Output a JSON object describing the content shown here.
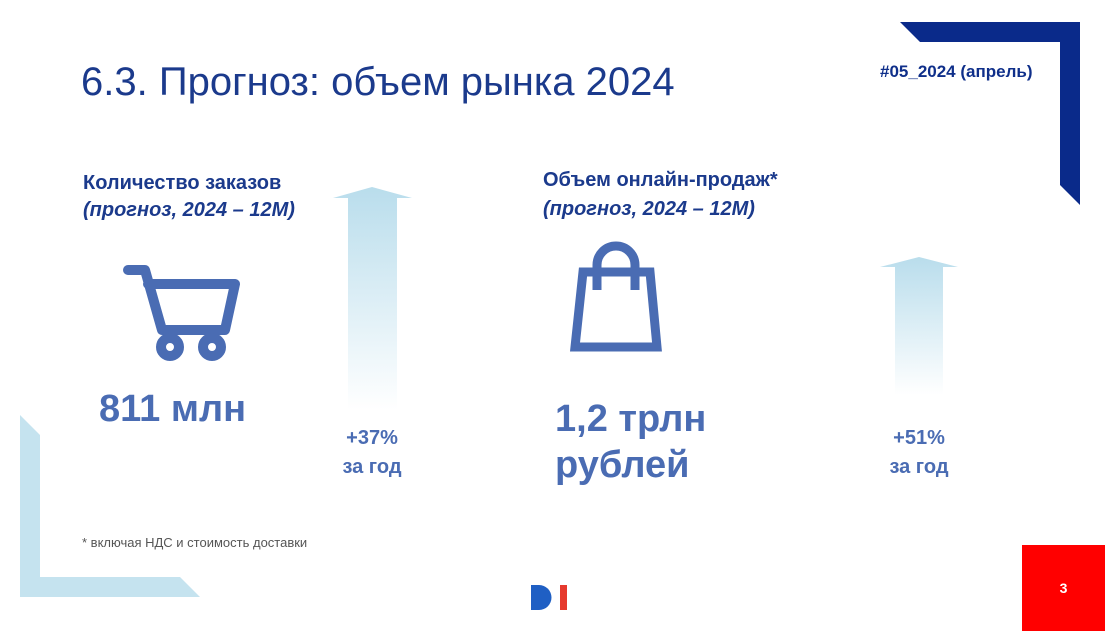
{
  "header": {
    "title": "6.3. Прогноз: объем рынка 2024",
    "tag": "#05_2024 (апрель)"
  },
  "blocks": [
    {
      "heading": "Количество заказов",
      "subheading": "(прогноз, 2024 – 12М)",
      "value_lines": [
        "811 млн"
      ],
      "growth": "+37%",
      "growth_period": "за год"
    },
    {
      "heading": "Объем онлайн-продаж*",
      "subheading": "(прогноз, 2024 – 12М)",
      "value_lines": [
        "1,2 трлн",
        "рублей"
      ],
      "growth": "+51%",
      "growth_period": "за год"
    }
  ],
  "footnote": "* включая НДС и стоимость доставки",
  "page_number": "3"
}
